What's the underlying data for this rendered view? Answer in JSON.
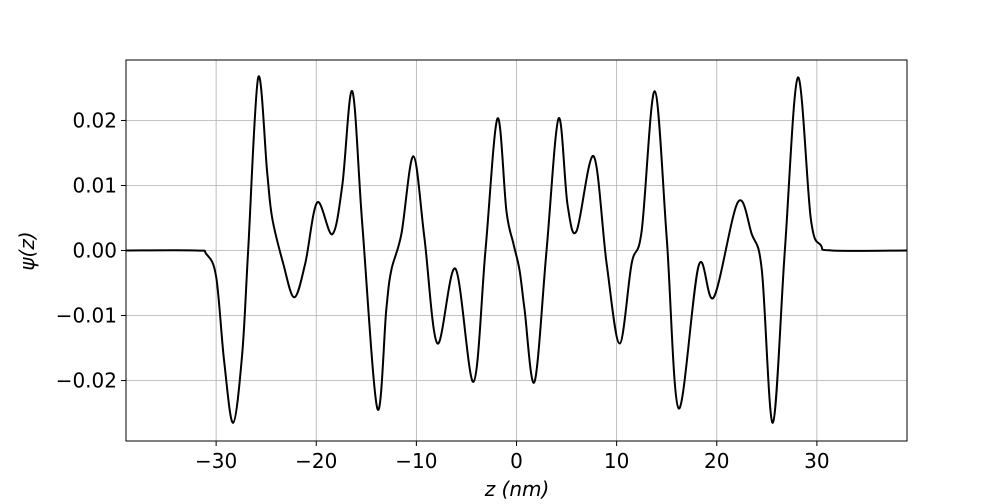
{
  "chart_data": {
    "type": "line",
    "xlabel": "z (nm)",
    "ylabel": "ψ(z)",
    "x": [
      -39,
      -32,
      -31,
      -30,
      -29.2,
      -28.3,
      -27.4,
      -26.8,
      -25.8,
      -24.9,
      -24.4,
      -23.3,
      -22.2,
      -21.1,
      -19.9,
      -18.4,
      -17.4,
      -16.4,
      -15.4,
      -13.9,
      -13.0,
      -12.5,
      -11.5,
      -10.3,
      -9.2,
      -7.9,
      -6.1,
      -4.3,
      -3.1,
      -1.9,
      -1.0,
      -0.3,
      0.3,
      0.8,
      1.8,
      3.0,
      4.2,
      5.1,
      6.0,
      7.7,
      9.0,
      10.3,
      11.5,
      12.5,
      13.8,
      15.0,
      16.2,
      18.2,
      19.7,
      22.1,
      23.5,
      24.5,
      25.6,
      26.8,
      28.1,
      29.4,
      30.4,
      31.5,
      39
    ],
    "series": [
      {
        "name": "ψ(z)",
        "color": "#000000",
        "values": [
          0,
          0,
          -0.0005,
          -0.004,
          -0.017,
          -0.0265,
          -0.016,
          0,
          0.0266,
          0.012,
          0.005,
          -0.002,
          -0.0072,
          -0.002,
          0.0074,
          0.0025,
          0.01,
          0.0245,
          0.004,
          -0.0243,
          -0.009,
          -0.003,
          0.0025,
          0.0145,
          0.002,
          -0.0143,
          -0.0028,
          -0.0202,
          0,
          0.0203,
          0.006,
          0.001,
          -0.003,
          -0.009,
          -0.0202,
          0,
          0.0203,
          0.007,
          0.003,
          0.0145,
          -0.002,
          -0.0143,
          -0.002,
          0.003,
          0.0245,
          0.002,
          -0.0243,
          -0.0023,
          -0.0072,
          0.0074,
          0.0025,
          -0.003,
          -0.0265,
          0,
          0.0266,
          0.0048,
          0.0008,
          0,
          0
        ]
      }
    ],
    "xlim": [
      -39,
      39
    ],
    "xticks": [
      {
        "value": -30,
        "label": "−30"
      },
      {
        "value": -20,
        "label": "−20"
      },
      {
        "value": -10,
        "label": "−10"
      },
      0,
      10,
      20,
      30
    ],
    "ylim": [
      -0.0293,
      0.0293
    ],
    "yticks": [
      {
        "value": -0.02,
        "label": "−0.02"
      },
      {
        "value": -0.01,
        "label": "−0.01"
      },
      {
        "value": 0,
        "label": "0.00"
      },
      0.01,
      0.02
    ],
    "grid": true
  }
}
